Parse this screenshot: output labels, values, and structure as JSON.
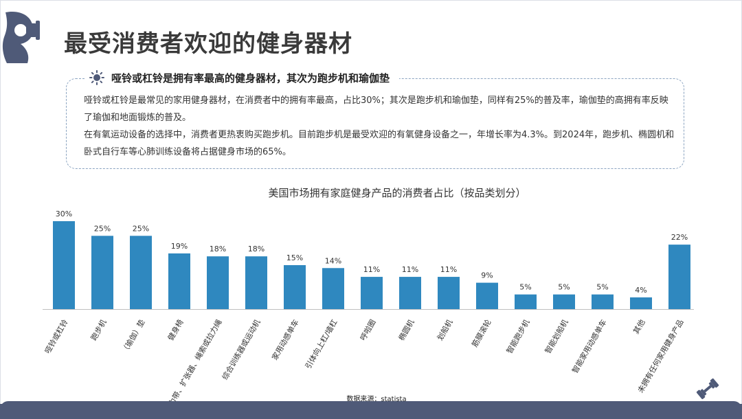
{
  "header": {
    "title": "最受消费者欢迎的健身器材"
  },
  "callout": {
    "icon": "sun-icon",
    "title": "哑铃或杠铃是拥有率最高的健身器材，其次为跑步机和瑜伽垫",
    "paragraphs": [
      "哑铃或杠铃是最常见的家用健身器材，在消费者中的拥有率最高，占比30%；其次是跑步机和瑜伽垫，同样有25%的普及率，瑜伽垫的高拥有率反映了瑜伽和地面锻炼的普及。",
      "在有氧运动设备的选择中，消费者更热衷购买跑步机。目前跑步机是最受欢迎的有氧健身设备之一，年增长率为4.3%。到2024年，跑步机、椭圆机和卧式自行车等心肺训练设备将占据健身市场的65%。"
    ]
  },
  "chart_data": {
    "type": "bar",
    "title": "美国市场拥有家庭健身产品的消费者占比（按品类划分）",
    "categories": [
      "哑铃或杠铃",
      "跑步机",
      "（瑜伽）垫",
      "健身椅",
      "拉力带、扩张器、绳索或拉力绳",
      "综合训练器或运动机",
      "家用动感单车",
      "引体向上杠/墙杠",
      "呼啦圈",
      "椭圆机",
      "划船机",
      "筋膜滚轮",
      "智能跑步机",
      "智能划船机",
      "智能家用动感单车",
      "其他",
      "未拥有任何家用健身产品"
    ],
    "values": [
      30,
      25,
      25,
      19,
      18,
      18,
      15,
      14,
      11,
      11,
      11,
      9,
      5,
      5,
      5,
      4,
      22
    ],
    "value_labels": [
      "30%",
      "25%",
      "25%",
      "19%",
      "18%",
      "18%",
      "15%",
      "14%",
      "11%",
      "11%",
      "11%",
      "9%",
      "5%",
      "5%",
      "5%",
      "4%",
      "22%"
    ],
    "unit": "%",
    "ylim": [
      0,
      30
    ],
    "color": "#2f88bf",
    "grid": false,
    "legend": "none"
  },
  "source": "数据来源：statista",
  "colors": {
    "bar": "#2f88bf",
    "footer": "#4f5a78",
    "callout_border": "#8aa3c0"
  }
}
